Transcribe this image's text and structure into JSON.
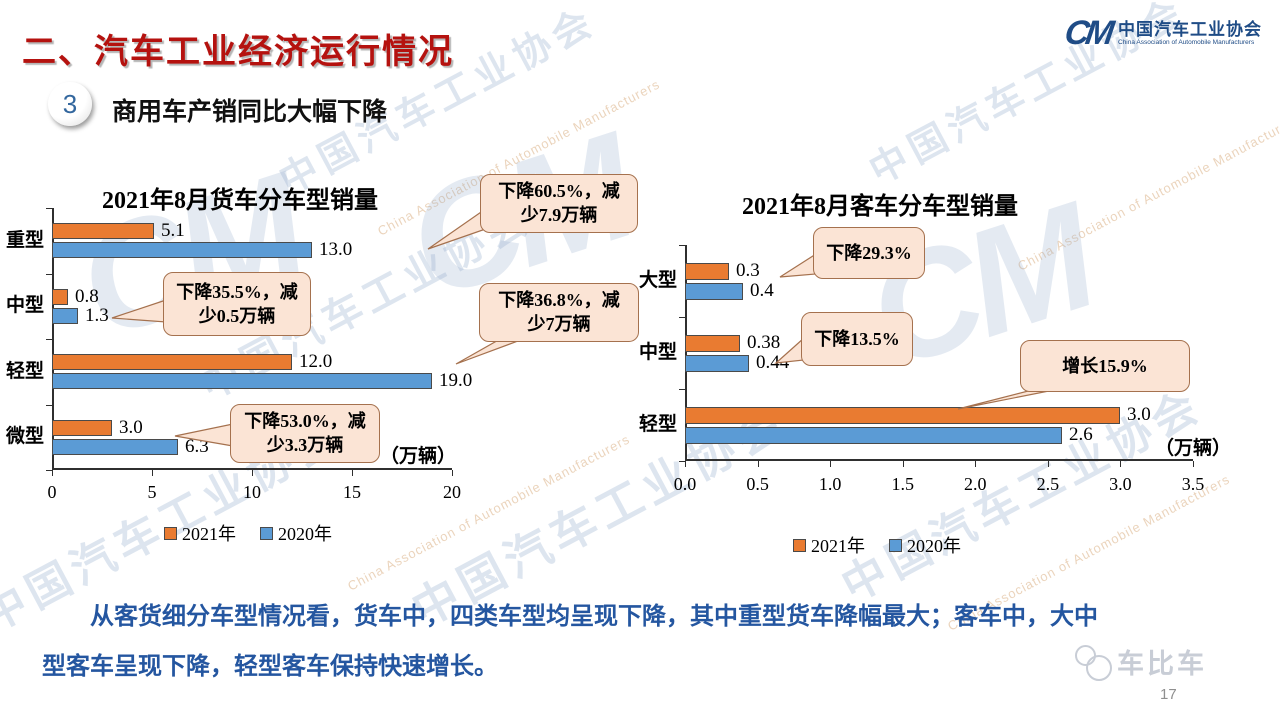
{
  "page": {
    "title": "二、汽车工业经济运行情况",
    "section_number": "3",
    "section_title": "商用车产销同比大幅下降",
    "page_number": "17",
    "brand_mark": "车比车"
  },
  "logo": {
    "monogram": "CM",
    "name_cn": "中国汽车工业协会",
    "name_en": "China Association of Automobile Manufacturers"
  },
  "watermark": {
    "cn": "中国汽车工业协会",
    "en": "China Association of Automobile Manufacturers",
    "monogram": "CM"
  },
  "summary": {
    "line1": "从客货细分车型情况看，货车中，四类车型均呈现下降，其中重型货车降幅最大；客车中，大中",
    "line2": "型客车呈现下降，轻型客车保持快速增长。"
  },
  "colors": {
    "title_red": "#B5120F",
    "summary_blue": "#2456A0",
    "bar_2021_orange": "#E97B31",
    "bar_2020_blue": "#5B9BD5",
    "callout_fill": "#FBE4D5",
    "callout_border": "#A5714E",
    "logo_blue": "#1F4C86"
  },
  "chart_data": [
    {
      "type": "bar",
      "orientation": "horizontal",
      "title": "2021年8月货车分车型销量",
      "unit_label": "（万辆）",
      "categories": [
        "重型",
        "中型",
        "轻型",
        "微型"
      ],
      "series": [
        {
          "name": "2021年",
          "color": "#E97B31",
          "values": [
            5.1,
            0.8,
            12.0,
            3.0
          ],
          "labels": [
            "5.1",
            "0.8",
            "12.0",
            "3.0"
          ]
        },
        {
          "name": "2020年",
          "color": "#5B9BD5",
          "values": [
            13.0,
            1.3,
            19.0,
            6.3
          ],
          "labels": [
            "13.0",
            "1.3",
            "19.0",
            "6.3"
          ]
        }
      ],
      "xlim": [
        0,
        20
      ],
      "xticks": [
        "0",
        "5",
        "10",
        "15",
        "20"
      ],
      "grid": false,
      "legend_position": "bottom",
      "annotations": [
        "下降60.5%，减少7.9万辆",
        "下降35.5%，减少0.5万辆",
        "下降36.8%，减少7万辆",
        "下降53.0%，减少3.3万辆"
      ]
    },
    {
      "type": "bar",
      "orientation": "horizontal",
      "title": "2021年8月客车分车型销量",
      "unit_label": "（万辆）",
      "categories": [
        "大型",
        "中型",
        "轻型"
      ],
      "series": [
        {
          "name": "2021年",
          "color": "#E97B31",
          "values": [
            0.3,
            0.38,
            3.0
          ],
          "labels": [
            "0.3",
            "0.38",
            "3.0"
          ]
        },
        {
          "name": "2020年",
          "color": "#5B9BD5",
          "values": [
            0.4,
            0.44,
            2.6
          ],
          "labels": [
            "0.4",
            "0.44",
            "2.6"
          ]
        }
      ],
      "xlim": [
        0,
        3.5
      ],
      "xticks": [
        "0.0",
        "0.5",
        "1.0",
        "1.5",
        "2.0",
        "2.5",
        "3.0",
        "3.5"
      ],
      "grid": false,
      "legend_position": "bottom",
      "annotations": [
        "下降29.3%",
        "下降13.5%",
        "增长15.9%"
      ]
    }
  ]
}
